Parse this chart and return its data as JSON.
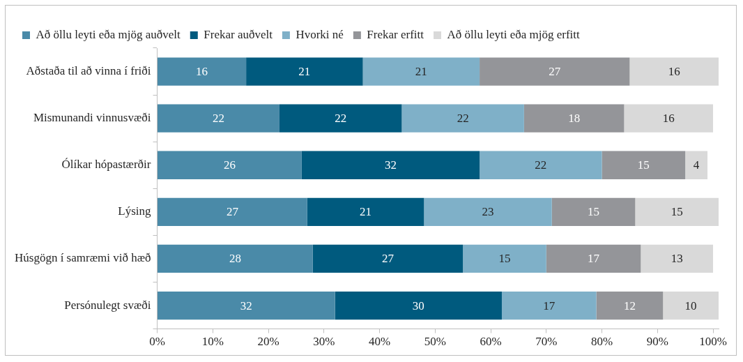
{
  "chart_data": {
    "type": "bar",
    "orientation": "horizontal",
    "stacked": true,
    "data_labels": true,
    "grid": false,
    "legend": "top",
    "categories": [
      "Aðstaða til að vinna í friði",
      "Mismunandi vinnusvæði",
      "Ólíkar hópastærðir",
      "Lýsing",
      "Húsgögn í samræmi við hæð",
      "Persónulegt svæði"
    ],
    "series": [
      {
        "name": "Að öllu leyti eða mjög auðvelt",
        "color": "#4a8aa8",
        "values": [
          16,
          22,
          26,
          27,
          28,
          32
        ]
      },
      {
        "name": "Frekar auðvelt",
        "color": "#005a7e",
        "values": [
          21,
          22,
          32,
          21,
          27,
          30
        ]
      },
      {
        "name": "Hvorki né",
        "color": "#7fb0c8",
        "values": [
          21,
          22,
          22,
          23,
          15,
          17
        ]
      },
      {
        "name": "Frekar erfitt",
        "color": "#949599",
        "values": [
          27,
          18,
          15,
          15,
          17,
          12
        ]
      },
      {
        "name": "Að öllu leyti eða mjög erfitt",
        "color": "#d9d9d9",
        "values": [
          16,
          16,
          4,
          15,
          13,
          10
        ]
      }
    ],
    "xlim": [
      0,
      101
    ],
    "xticks": [
      {
        "value": 0,
        "label": "0%"
      },
      {
        "value": 10,
        "label": "10%"
      },
      {
        "value": 20,
        "label": "20%"
      },
      {
        "value": 30,
        "label": "30%"
      },
      {
        "value": 40,
        "label": "40%"
      },
      {
        "value": 50,
        "label": "50%"
      },
      {
        "value": 60,
        "label": "60%"
      },
      {
        "value": 70,
        "label": "70%"
      },
      {
        "value": 80,
        "label": "80%"
      },
      {
        "value": 90,
        "label": "90%"
      },
      {
        "value": 100,
        "label": "100%"
      }
    ]
  }
}
